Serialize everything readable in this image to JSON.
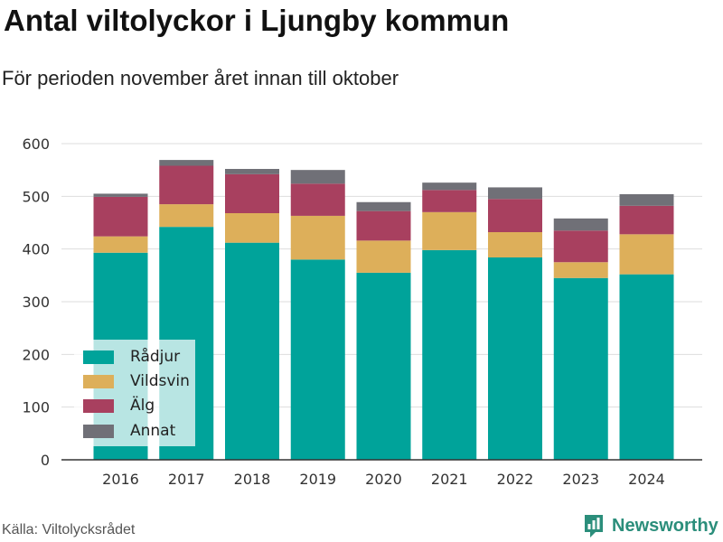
{
  "header": {
    "title": "Antal viltolyckor i Ljungby kommun",
    "subtitle": "För perioden november året innan till oktober"
  },
  "footer": {
    "source": "Källa: Viltolycksrådet",
    "brand": "Newsworthy"
  },
  "chart_data": {
    "type": "bar",
    "stacked": true,
    "title": "Antal viltolyckor i Ljungby kommun",
    "subtitle": "För perioden november året innan till oktober",
    "xlabel": "",
    "ylabel": "",
    "ylim": [
      0,
      600
    ],
    "yticks": [
      0,
      100,
      200,
      300,
      400,
      500,
      600
    ],
    "grid": true,
    "legend_position": "bottom-left",
    "categories": [
      "2016",
      "2017",
      "2018",
      "2019",
      "2020",
      "2021",
      "2022",
      "2023",
      "2024"
    ],
    "series": [
      {
        "name": "Rådjur",
        "color": "#00a39a",
        "values": [
          393,
          442,
          412,
          380,
          355,
          398,
          384,
          345,
          352
        ]
      },
      {
        "name": "Vildsvin",
        "color": "#ddaf5a",
        "values": [
          31,
          43,
          56,
          83,
          61,
          72,
          48,
          30,
          76
        ]
      },
      {
        "name": "Älg",
        "color": "#a8405f",
        "values": [
          75,
          73,
          74,
          61,
          56,
          42,
          63,
          60,
          54
        ]
      },
      {
        "name": "Annat",
        "color": "#707077",
        "values": [
          6,
          11,
          10,
          26,
          17,
          14,
          22,
          23,
          22
        ]
      }
    ]
  }
}
